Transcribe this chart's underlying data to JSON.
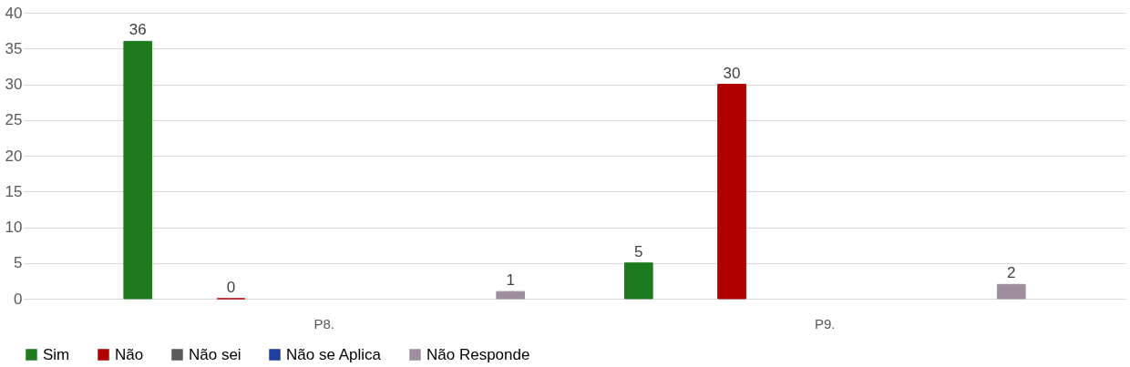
{
  "chart_data": {
    "type": "bar",
    "categories": [
      "P8.",
      "P9."
    ],
    "series": [
      {
        "name": "Sim",
        "color": "#1e7a1e",
        "values": [
          36,
          5
        ],
        "value_labels": [
          "36",
          "5"
        ]
      },
      {
        "name": "Não",
        "color": "#b00000",
        "values": [
          0,
          30
        ],
        "value_labels": [
          "0",
          "30"
        ]
      },
      {
        "name": "Não sei",
        "color": "#5a5a5a",
        "values": [
          null,
          null
        ],
        "value_labels": [
          null,
          null
        ]
      },
      {
        "name": "Não se Aplica",
        "color": "#1f3f9f",
        "values": [
          null,
          null
        ],
        "value_labels": [
          null,
          null
        ]
      },
      {
        "name": "Não Responde",
        "color": "#9e8e9e",
        "values": [
          1,
          2
        ],
        "value_labels": [
          "1",
          "2"
        ]
      }
    ],
    "ylim": [
      0,
      40
    ],
    "yticks": [
      0,
      5,
      10,
      15,
      20,
      25,
      30,
      35,
      40
    ],
    "grid": "y",
    "legend": "bottom"
  }
}
